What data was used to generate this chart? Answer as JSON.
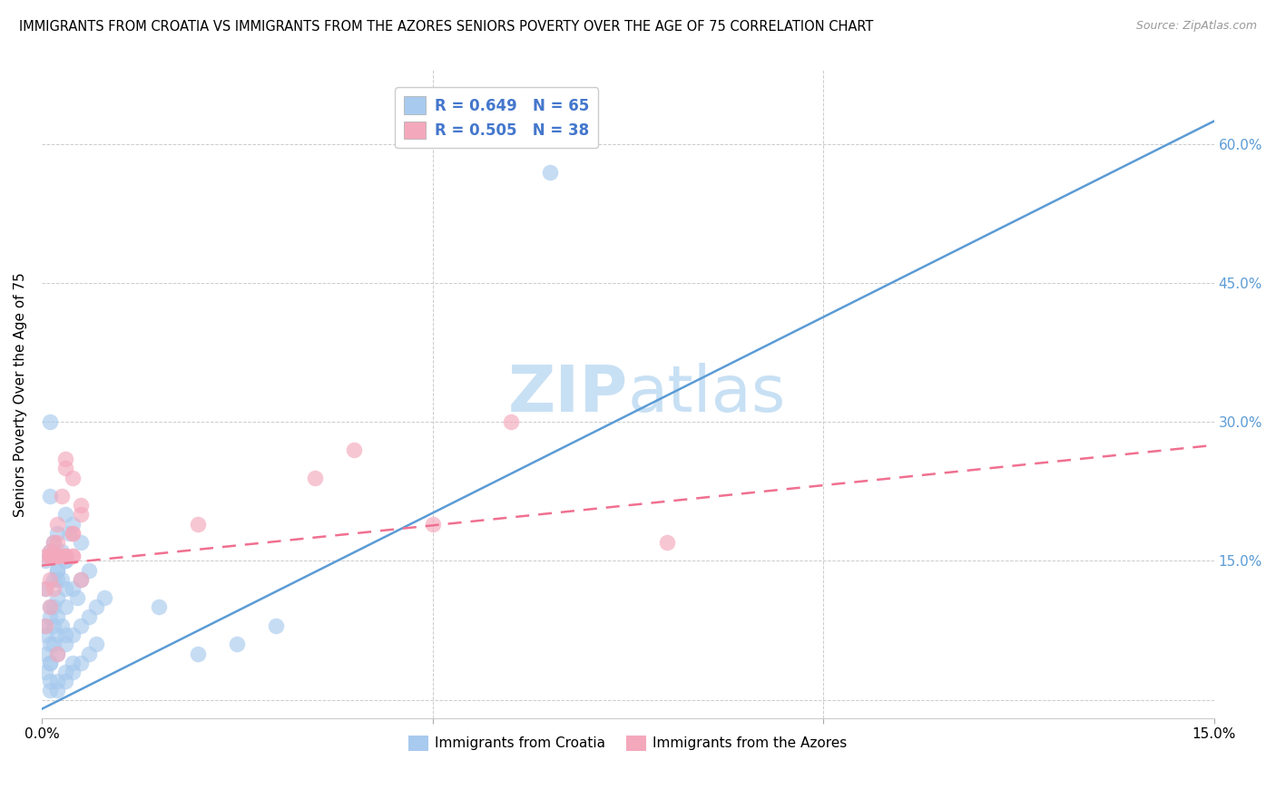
{
  "title": "IMMIGRANTS FROM CROATIA VS IMMIGRANTS FROM THE AZORES SENIORS POVERTY OVER THE AGE OF 75 CORRELATION CHART",
  "source": "Source: ZipAtlas.com",
  "ylabel": "Seniors Poverty Over the Age of 75",
  "xlim": [
    0,
    0.15
  ],
  "ylim": [
    -0.02,
    0.68
  ],
  "croatia_color": "#A8CAEE",
  "azores_color": "#F4A8BC",
  "croatia_line_color": "#5B9BD5",
  "azores_line_color": "#F07090",
  "watermark_text": "ZIPatlas",
  "watermark_color": "#C8E0F4",
  "croatia_line_x0": 0.0,
  "croatia_line_y0": -0.01,
  "croatia_line_x1": 0.15,
  "croatia_line_y1": 0.625,
  "azores_line_x0": 0.0,
  "azores_line_y0": 0.145,
  "azores_line_x1": 0.15,
  "azores_line_y1": 0.275,
  "croatia_scatter_x": [
    0.0005,
    0.001,
    0.0015,
    0.002,
    0.0025,
    0.003,
    0.0035,
    0.004,
    0.0045,
    0.005,
    0.0005,
    0.001,
    0.0015,
    0.002,
    0.0025,
    0.003,
    0.0005,
    0.001,
    0.0015,
    0.002,
    0.0005,
    0.001,
    0.0015,
    0.002,
    0.0025,
    0.003,
    0.0005,
    0.001,
    0.0015,
    0.002,
    0.0005,
    0.001,
    0.002,
    0.003,
    0.004,
    0.005,
    0.006,
    0.007,
    0.008,
    0.003,
    0.004,
    0.005,
    0.006,
    0.007,
    0.002,
    0.003,
    0.004,
    0.005,
    0.006,
    0.001,
    0.002,
    0.003,
    0.004,
    0.001,
    0.002,
    0.003,
    0.015,
    0.02,
    0.025,
    0.03,
    0.002,
    0.001,
    0.001,
    0.065,
    0.003
  ],
  "croatia_scatter_y": [
    0.12,
    0.1,
    0.13,
    0.14,
    0.16,
    0.15,
    0.18,
    0.12,
    0.11,
    0.17,
    0.08,
    0.09,
    0.1,
    0.11,
    0.13,
    0.12,
    0.07,
    0.06,
    0.08,
    0.09,
    0.05,
    0.04,
    0.06,
    0.07,
    0.08,
    0.1,
    0.15,
    0.16,
    0.17,
    0.14,
    0.03,
    0.04,
    0.05,
    0.06,
    0.07,
    0.08,
    0.09,
    0.1,
    0.11,
    0.02,
    0.03,
    0.04,
    0.05,
    0.06,
    0.18,
    0.2,
    0.19,
    0.13,
    0.14,
    0.01,
    0.02,
    0.03,
    0.04,
    0.22,
    0.13,
    0.15,
    0.1,
    0.05,
    0.06,
    0.08,
    0.01,
    0.02,
    0.3,
    0.57,
    0.07
  ],
  "azores_scatter_x": [
    0.0005,
    0.001,
    0.0015,
    0.002,
    0.0025,
    0.003,
    0.004,
    0.005,
    0.0005,
    0.001,
    0.0015,
    0.002,
    0.0005,
    0.001,
    0.0015,
    0.001,
    0.002,
    0.003,
    0.004,
    0.005,
    0.002,
    0.001,
    0.003,
    0.004,
    0.002,
    0.003,
    0.004,
    0.005,
    0.001,
    0.002,
    0.003,
    0.004,
    0.06,
    0.05,
    0.08,
    0.04,
    0.035,
    0.02
  ],
  "azores_scatter_y": [
    0.155,
    0.16,
    0.17,
    0.19,
    0.22,
    0.26,
    0.24,
    0.21,
    0.12,
    0.13,
    0.155,
    0.17,
    0.08,
    0.1,
    0.12,
    0.155,
    0.155,
    0.155,
    0.155,
    0.13,
    0.155,
    0.155,
    0.155,
    0.18,
    0.05,
    0.155,
    0.155,
    0.2,
    0.155,
    0.155,
    0.25,
    0.18,
    0.3,
    0.19,
    0.17,
    0.27,
    0.24,
    0.19
  ]
}
